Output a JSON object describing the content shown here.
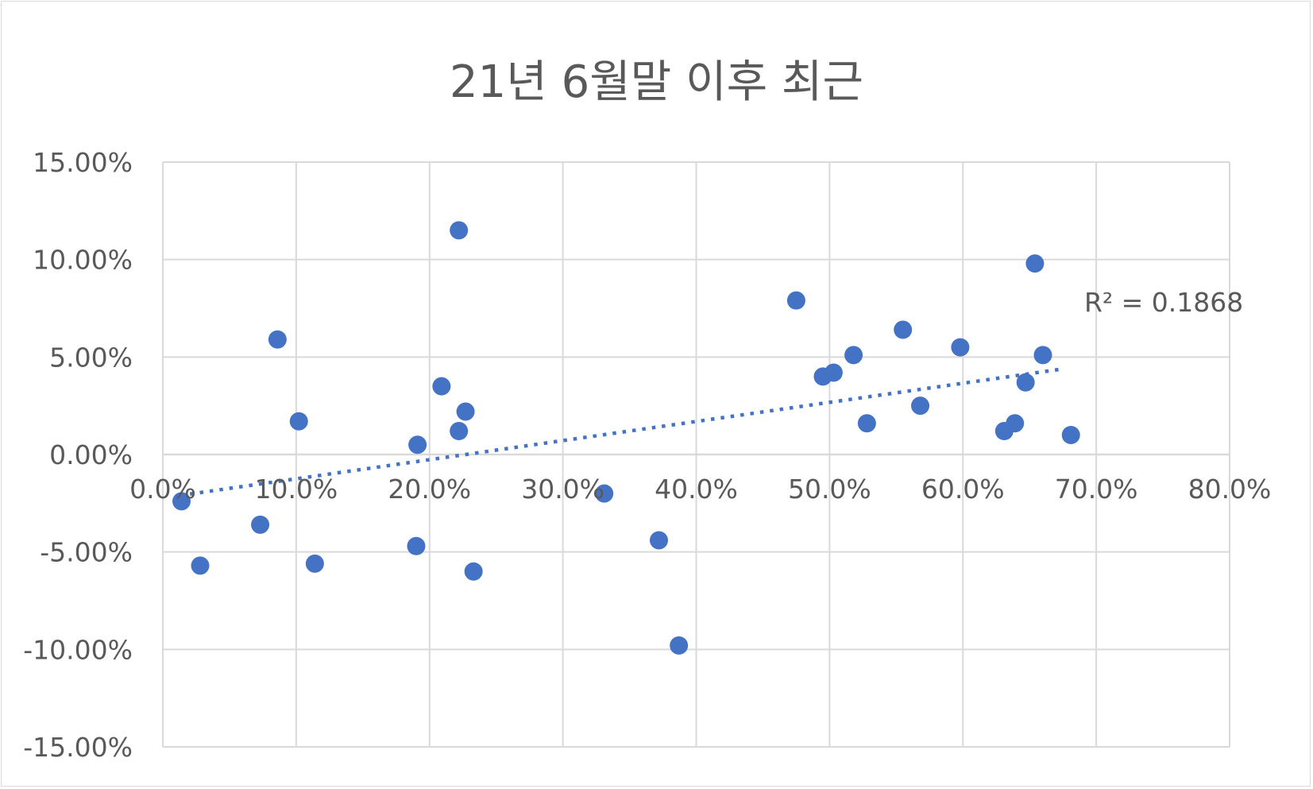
{
  "chart_data": {
    "type": "scatter",
    "title": "21년 6월말 이후 최근",
    "xlabel": "",
    "ylabel": "",
    "xlim": [
      0,
      80
    ],
    "ylim": [
      -15,
      15
    ],
    "x_ticks": [
      "0.0%",
      "10.0%",
      "20.0%",
      "30.0%",
      "40.0%",
      "50.0%",
      "60.0%",
      "70.0%",
      "80.0%"
    ],
    "y_ticks": [
      "15.00%",
      "10.00%",
      "5.00%",
      "0.00%",
      "-5.00%",
      "-10.00%",
      "-15.00%"
    ],
    "grid": true,
    "legend": "none",
    "marker_color": "#4472c4",
    "trendline": {
      "type": "linear",
      "style": "dotted",
      "color": "#4472c4",
      "x_range": [
        1.3,
        67.6
      ],
      "y_range": [
        -2.1,
        4.4
      ],
      "r_squared_label": "R² = 0.1868"
    },
    "points": [
      {
        "x": 1.4,
        "y": -2.4
      },
      {
        "x": 2.8,
        "y": -5.7
      },
      {
        "x": 7.3,
        "y": -3.6
      },
      {
        "x": 8.6,
        "y": 5.9
      },
      {
        "x": 10.2,
        "y": 1.7
      },
      {
        "x": 11.4,
        "y": -5.6
      },
      {
        "x": 19.0,
        "y": -4.7
      },
      {
        "x": 19.1,
        "y": 0.5
      },
      {
        "x": 20.9,
        "y": 3.5
      },
      {
        "x": 22.2,
        "y": 11.5
      },
      {
        "x": 22.2,
        "y": 1.2
      },
      {
        "x": 22.7,
        "y": 2.2
      },
      {
        "x": 23.3,
        "y": -6.0
      },
      {
        "x": 33.1,
        "y": -2.0
      },
      {
        "x": 37.2,
        "y": -4.4
      },
      {
        "x": 38.7,
        "y": -9.8
      },
      {
        "x": 47.5,
        "y": 7.9
      },
      {
        "x": 49.5,
        "y": 4.0
      },
      {
        "x": 50.3,
        "y": 4.2
      },
      {
        "x": 51.8,
        "y": 5.1
      },
      {
        "x": 52.8,
        "y": 1.6
      },
      {
        "x": 55.5,
        "y": 6.4
      },
      {
        "x": 56.8,
        "y": 2.5
      },
      {
        "x": 59.8,
        "y": 5.5
      },
      {
        "x": 63.1,
        "y": 1.2
      },
      {
        "x": 63.9,
        "y": 1.6
      },
      {
        "x": 64.7,
        "y": 3.7
      },
      {
        "x": 65.4,
        "y": 9.8
      },
      {
        "x": 66.0,
        "y": 5.1
      },
      {
        "x": 68.1,
        "y": 1.0
      }
    ]
  }
}
